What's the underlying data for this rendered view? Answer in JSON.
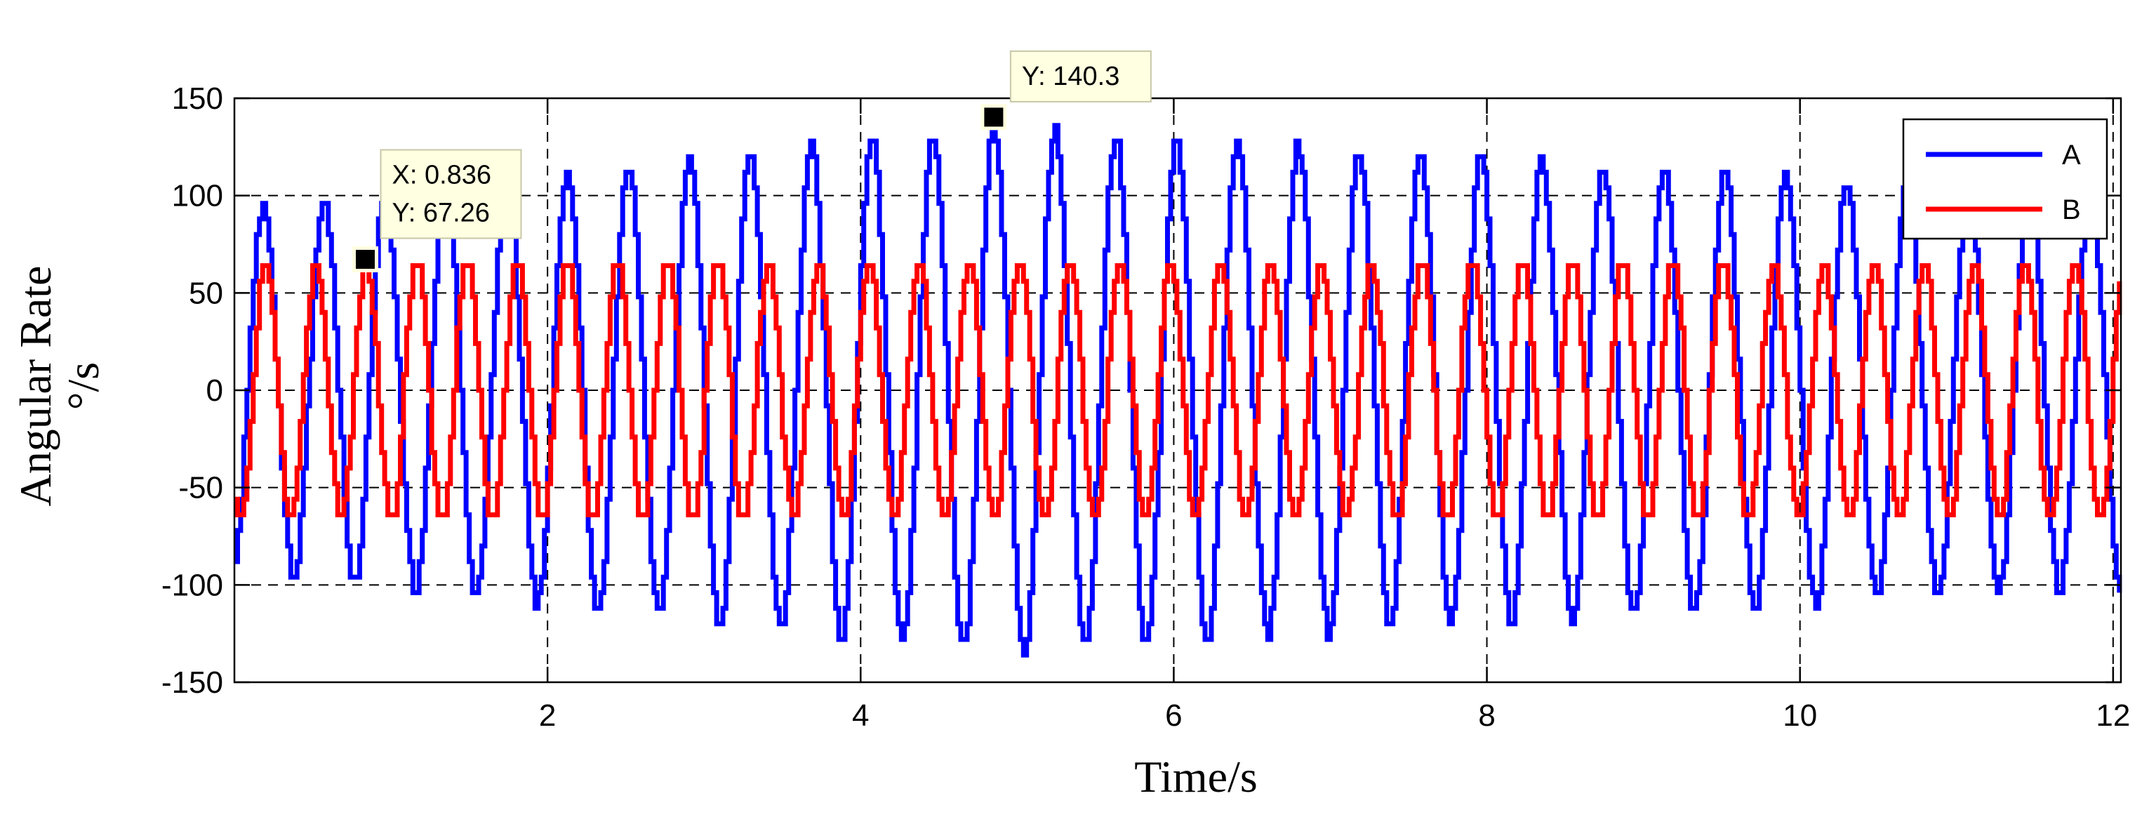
{
  "chart_data": {
    "type": "line",
    "title": "",
    "xlabel": "Time/s",
    "ylabel": "Angular Rate",
    "ylabel_unit": "°/s",
    "xlim": [
      0,
      12.05
    ],
    "ylim": [
      -150,
      150
    ],
    "xticks": [
      2,
      4,
      6,
      8,
      10,
      12
    ],
    "yticks": [
      -150,
      -100,
      -50,
      0,
      50,
      100,
      150
    ],
    "grid": true,
    "legend_position": "top-right",
    "series": [
      {
        "name": "A",
        "color": "#0000ff",
        "period": 0.389,
        "phase": 0.0,
        "amplitude_start": 92,
        "amplitude_peak": 135,
        "amplitude_end": 100,
        "peak_t": 4.85
      },
      {
        "name": "B",
        "color": "#ff0000",
        "period": 0.321,
        "phase": 0.836,
        "amplitude": 67
      }
    ],
    "datatips": [
      {
        "lines": [
          "X: 0.836",
          "Y: 67.26"
        ],
        "x": 0.836,
        "y": 67.26
      },
      {
        "lines": [
          "Y: 140.3"
        ],
        "x": 4.85,
        "y": 140.3
      }
    ]
  }
}
